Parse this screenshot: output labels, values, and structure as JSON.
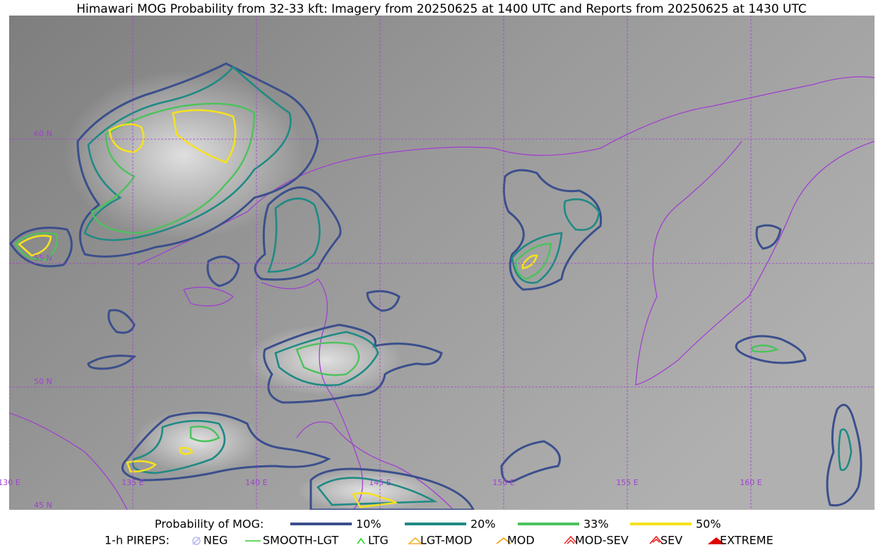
{
  "title": "Himawari MOG Probability from 32-33 kft: Imagery from 20250625 at 1400 UTC and Reports from 20250625 at 1430 UTC",
  "map": {
    "lat_labels": [
      "60 N",
      "55 N",
      "50 N",
      "45 N"
    ],
    "lon_labels": [
      "130 E",
      "135 E",
      "140 E",
      "145 E",
      "150 E",
      "155 E",
      "160 E"
    ]
  },
  "legend": {
    "probability": {
      "label": "Probability of MOG:",
      "items": [
        {
          "label": "10%",
          "color": "#3b4f8c"
        },
        {
          "label": "20%",
          "color": "#1f8a84"
        },
        {
          "label": "33%",
          "color": "#4cc25c"
        },
        {
          "label": "50%",
          "color": "#f5e11f"
        }
      ]
    },
    "pireps": {
      "label": "1-h PIREPS:",
      "items": [
        {
          "label": "NEG",
          "color": "#b9b9f0"
        },
        {
          "label": "SMOOTH-LGT",
          "color": "#33cc33"
        },
        {
          "label": "LTG",
          "color": "#22dd22"
        },
        {
          "label": "LGT-MOD",
          "color": "#f0b020"
        },
        {
          "label": "MOD",
          "color": "#f0a000"
        },
        {
          "label": "MOD-SEV",
          "color": "#e83030"
        },
        {
          "label": "SEV",
          "color": "#e82020"
        },
        {
          "label": "EXTREME",
          "color": "#e00000"
        }
      ]
    }
  }
}
